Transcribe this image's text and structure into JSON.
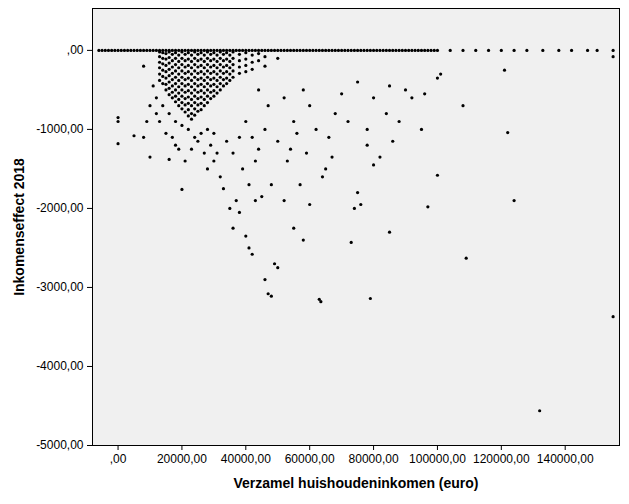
{
  "chart_data": {
    "type": "scatter",
    "x_label": "Verzamel huishoudeninkomen (euro)",
    "y_label": "Inkomenseffect 2018",
    "color": "#000000",
    "xlim": [
      -8000,
      157000
    ],
    "ylim": [
      -5000,
      530
    ],
    "xticks": [
      {
        "value": 0,
        "label": ",00"
      },
      {
        "value": 20000,
        "label": "20000,00"
      },
      {
        "value": 40000,
        "label": "40000,00"
      },
      {
        "value": 60000,
        "label": "60000,00"
      },
      {
        "value": 80000,
        "label": "80000,00"
      },
      {
        "value": 100000,
        "label": "100000,00"
      },
      {
        "value": 120000,
        "label": "120000,00"
      },
      {
        "value": 140000,
        "label": "140000,00"
      }
    ],
    "yticks": [
      {
        "value": 0,
        "label": ",00"
      },
      {
        "value": -1000,
        "label": "-1000,00"
      },
      {
        "value": -2000,
        "label": "-2000,00"
      },
      {
        "value": -3000,
        "label": "-3000,00"
      },
      {
        "value": -4000,
        "label": "-4000,00"
      },
      {
        "value": -5000,
        "label": "-5000,00"
      }
    ],
    "x": [
      -6000,
      -5000,
      -4000,
      -3000,
      -2000,
      -1000,
      0,
      1000,
      2000,
      3000,
      4000,
      5000,
      6000,
      7000,
      8000,
      9000,
      10000,
      11000,
      12000,
      13000,
      14000,
      15000,
      16000,
      17000,
      18000,
      19000,
      20000,
      21000,
      22000,
      23000,
      24000,
      25000,
      26000,
      27000,
      28000,
      29000,
      30000,
      31000,
      32000,
      33000,
      34000,
      35000,
      36000,
      37000,
      38000,
      39000,
      40000,
      41000,
      42000,
      43000,
      44000,
      45000,
      46000,
      47000,
      48000,
      49000,
      50000,
      51000,
      52000,
      53000,
      54000,
      55000,
      56000,
      57000,
      58000,
      59000,
      60000,
      61000,
      62000,
      63000,
      64000,
      65000,
      66000,
      67000,
      68000,
      69000,
      70000,
      71000,
      72000,
      73000,
      74000,
      75000,
      76000,
      77000,
      78000,
      79000,
      80000,
      81000,
      82000,
      83000,
      84000,
      85000,
      86000,
      87000,
      88000,
      89000,
      90000,
      91000,
      92000,
      93000,
      94000,
      95000,
      96000,
      97000,
      98000,
      99000,
      100000,
      104000,
      108000,
      112000,
      116000,
      120000,
      124000,
      128000,
      133000,
      138000,
      142000,
      147000,
      150000,
      155000,
      13000,
      13000,
      13000,
      13000,
      13000,
      13000,
      14000,
      14000,
      14000,
      14000,
      14000,
      14000,
      15000,
      15000,
      15000,
      15000,
      15000,
      15000,
      15000,
      16000,
      16000,
      16000,
      16000,
      16000,
      16000,
      16000,
      16000,
      17000,
      17000,
      17000,
      17000,
      17000,
      17000,
      17000,
      17000,
      18000,
      18000,
      18000,
      18000,
      18000,
      18000,
      18000,
      18000,
      18000,
      19000,
      19000,
      19000,
      19000,
      19000,
      19000,
      19000,
      19000,
      19000,
      20000,
      20000,
      20000,
      20000,
      20000,
      20000,
      20000,
      20000,
      20000,
      20000,
      21000,
      21000,
      21000,
      21000,
      21000,
      21000,
      21000,
      21000,
      21000,
      21000,
      22000,
      22000,
      22000,
      22000,
      22000,
      22000,
      22000,
      22000,
      22000,
      22000,
      22000,
      23000,
      23000,
      23000,
      23000,
      23000,
      23000,
      23000,
      23000,
      23000,
      23000,
      23000,
      24000,
      24000,
      24000,
      24000,
      24000,
      24000,
      24000,
      24000,
      24000,
      24000,
      24000,
      25000,
      25000,
      25000,
      25000,
      25000,
      25000,
      25000,
      25000,
      25000,
      25000,
      26000,
      26000,
      26000,
      26000,
      26000,
      26000,
      26000,
      26000,
      26000,
      26000,
      27000,
      27000,
      27000,
      27000,
      27000,
      27000,
      27000,
      27000,
      27000,
      28000,
      28000,
      28000,
      28000,
      28000,
      28000,
      28000,
      28000,
      28000,
      29000,
      29000,
      29000,
      29000,
      29000,
      29000,
      29000,
      29000,
      30000,
      30000,
      30000,
      30000,
      30000,
      30000,
      30000,
      30000,
      31000,
      31000,
      31000,
      31000,
      31000,
      31000,
      31000,
      32000,
      32000,
      32000,
      32000,
      32000,
      32000,
      32000,
      33000,
      33000,
      33000,
      33000,
      33000,
      33000,
      34000,
      34000,
      34000,
      34000,
      34000,
      34000,
      35000,
      35000,
      35000,
      35000,
      35000,
      36000,
      36000,
      36000,
      36000,
      36000,
      38000,
      38000,
      38000,
      38000,
      40000,
      40000,
      40000,
      40000,
      42000,
      42000,
      42000,
      44000,
      44000,
      46000,
      46000,
      50000,
      0,
      0,
      0,
      5000,
      8000,
      10000,
      12000,
      13000,
      16000,
      20000,
      18000,
      25000,
      27000,
      28000,
      30000,
      32000,
      33000,
      35000,
      36000,
      37000,
      38000,
      40000,
      41000,
      42000,
      43000,
      45000,
      46000,
      47000,
      48000,
      49000,
      50000,
      48000,
      52000,
      53000,
      55000,
      57000,
      58000,
      60000,
      63000,
      63500,
      64000,
      65000,
      67000,
      73000,
      74000,
      75000,
      76000,
      78000,
      79000,
      80000,
      82000,
      84000,
      85000,
      88000,
      92000,
      96000,
      97000,
      100000,
      101000,
      108000,
      109000,
      121000,
      122000,
      124000,
      132000,
      155000,
      155000,
      100000,
      42000,
      44000,
      46000,
      50000,
      55000,
      60000,
      62000,
      68000,
      70000,
      75000,
      80000,
      85000,
      90000,
      58000,
      52000,
      47000,
      44000,
      40000,
      38000,
      36000,
      34000,
      30000,
      28000,
      26000,
      24000,
      22000,
      20000,
      18000,
      16000,
      14000,
      12000,
      11000,
      10000,
      8000,
      9000,
      15000,
      17000,
      19000,
      23000,
      21000,
      29000,
      31000,
      39000,
      41000,
      43000,
      54000,
      56000,
      59000,
      66000,
      72000,
      78000,
      86000,
      95000
    ],
    "values": [
      0,
      0,
      0,
      0,
      0,
      0,
      0,
      0,
      0,
      0,
      0,
      0,
      0,
      0,
      0,
      0,
      0,
      0,
      0,
      0,
      0,
      0,
      0,
      0,
      0,
      0,
      0,
      0,
      0,
      0,
      0,
      0,
      0,
      0,
      0,
      0,
      0,
      0,
      0,
      0,
      0,
      0,
      0,
      0,
      0,
      0,
      0,
      0,
      0,
      0,
      0,
      0,
      0,
      0,
      0,
      0,
      0,
      0,
      0,
      0,
      0,
      0,
      0,
      0,
      0,
      0,
      0,
      0,
      0,
      0,
      0,
      0,
      0,
      0,
      0,
      0,
      0,
      0,
      0,
      0,
      0,
      0,
      0,
      0,
      0,
      0,
      0,
      0,
      0,
      0,
      0,
      0,
      0,
      0,
      0,
      0,
      0,
      0,
      0,
      0,
      0,
      0,
      0,
      0,
      0,
      0,
      0,
      0,
      0,
      0,
      0,
      0,
      0,
      0,
      0,
      0,
      0,
      0,
      0,
      0,
      -20,
      -80,
      -150,
      -220,
      -300,
      -380,
      -30,
      -100,
      -170,
      -250,
      -330,
      -420,
      -40,
      -110,
      -190,
      -270,
      -350,
      -430,
      -500,
      -20,
      -90,
      -160,
      -240,
      -320,
      -400,
      -480,
      -560,
      -50,
      -130,
      -210,
      -290,
      -370,
      -450,
      -530,
      -600,
      -30,
      -100,
      -180,
      -260,
      -340,
      -420,
      -500,
      -580,
      -650,
      -60,
      -140,
      -220,
      -300,
      -380,
      -460,
      -540,
      -620,
      -700,
      -20,
      -100,
      -180,
      -260,
      -340,
      -420,
      -500,
      -580,
      -660,
      -740,
      -50,
      -130,
      -210,
      -290,
      -370,
      -450,
      -530,
      -610,
      -690,
      -780,
      -30,
      -110,
      -190,
      -270,
      -350,
      -430,
      -510,
      -590,
      -670,
      -750,
      -830,
      -60,
      -140,
      -220,
      -300,
      -380,
      -460,
      -540,
      -620,
      -700,
      -800,
      -870,
      -20,
      -100,
      -180,
      -260,
      -340,
      -420,
      -500,
      -580,
      -660,
      -740,
      -820,
      -50,
      -130,
      -210,
      -290,
      -370,
      -450,
      -530,
      -610,
      -690,
      -770,
      -30,
      -110,
      -190,
      -270,
      -350,
      -430,
      -510,
      -590,
      -670,
      -750,
      -60,
      -140,
      -220,
      -300,
      -380,
      -460,
      -540,
      -620,
      -700,
      -20,
      -100,
      -180,
      -260,
      -340,
      -420,
      -500,
      -580,
      -660,
      -50,
      -130,
      -210,
      -290,
      -370,
      -450,
      -530,
      -610,
      -30,
      -110,
      -190,
      -270,
      -350,
      -430,
      -510,
      -580,
      -60,
      -140,
      -220,
      -300,
      -380,
      -460,
      -540,
      -20,
      -100,
      -180,
      -260,
      -340,
      -420,
      -500,
      -50,
      -130,
      -210,
      -290,
      -370,
      -450,
      -30,
      -110,
      -190,
      -270,
      -350,
      -420,
      -60,
      -140,
      -220,
      -300,
      -380,
      -20,
      -100,
      -180,
      -260,
      -340,
      -50,
      -130,
      -210,
      -290,
      -30,
      -110,
      -190,
      -270,
      -60,
      -150,
      -240,
      -40,
      -130,
      -80,
      -200,
      -100,
      -850,
      -900,
      -1180,
      -1080,
      -1100,
      -1350,
      -800,
      -900,
      -1380,
      -1760,
      -1200,
      -1150,
      -1300,
      -1500,
      -1400,
      -1600,
      -1750,
      -2000,
      -2250,
      -1900,
      -2050,
      -2350,
      -2500,
      -2580,
      -1900,
      -1850,
      -2900,
      -3080,
      -3110,
      -2700,
      -2750,
      -1700,
      -1900,
      -1400,
      -2250,
      -1700,
      -2400,
      -1950,
      -3150,
      -3180,
      -1600,
      -1500,
      -1350,
      -2430,
      -2000,
      -1800,
      -1950,
      -1000,
      -3140,
      -1450,
      -1350,
      -800,
      -2300,
      -900,
      -600,
      -550,
      -1980,
      -1580,
      -300,
      -700,
      -2630,
      -250,
      -1040,
      -1900,
      -4560,
      -3370,
      -80,
      -350,
      -1100,
      -1250,
      -1000,
      -1150,
      -900,
      -700,
      -1000,
      -800,
      -550,
      -400,
      -600,
      -450,
      -500,
      -500,
      -600,
      -700,
      -500,
      -900,
      -1100,
      -1300,
      -1150,
      -1050,
      -1000,
      -1050,
      -1100,
      -1000,
      -950,
      -900,
      -800,
      -700,
      -600,
      -450,
      -700,
      -200,
      -900,
      -1050,
      -1100,
      -1250,
      -1250,
      -1400,
      -1200,
      -1300,
      -1500,
      -1700,
      -1400,
      -1250,
      -1050,
      -1300,
      -1100,
      -900,
      -1200,
      -1150,
      -1000
    ]
  }
}
